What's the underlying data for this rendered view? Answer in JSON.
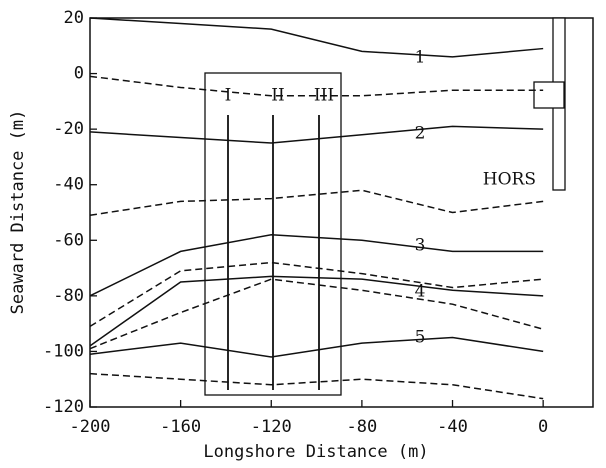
{
  "chart_data": {
    "type": "line",
    "xlabel": "Longshore Distance (m)",
    "ylabel": "Seaward Distance (m)",
    "x": [
      -200,
      -160,
      -120,
      -80,
      -40,
      0
    ],
    "series": [
      {
        "color": "#111111",
        "dashed": false,
        "values": [
          20,
          18,
          16,
          8,
          6,
          9
        ]
      },
      {
        "color": "#111111",
        "dashed": true,
        "values": [
          -1,
          -5,
          -8,
          -8,
          -6,
          -6
        ]
      },
      {
        "color": "#111111",
        "dashed": false,
        "values": [
          -21,
          -23,
          -25,
          -22,
          -19,
          -20
        ]
      },
      {
        "color": "#111111",
        "dashed": true,
        "values": [
          -51,
          -46,
          -45,
          -42,
          -50,
          -46
        ]
      },
      {
        "color": "#111111",
        "dashed": false,
        "values": [
          -80,
          -64,
          -58,
          -60,
          -64,
          -64
        ]
      },
      {
        "color": "#111111",
        "dashed": true,
        "values": [
          -91,
          -71,
          -68,
          -72,
          -77,
          -74
        ]
      },
      {
        "color": "#111111",
        "dashed": false,
        "values": [
          -98,
          -75,
          -73,
          -74,
          -78,
          -80
        ]
      },
      {
        "color": "#111111",
        "dashed": true,
        "values": [
          -99,
          -86,
          -74,
          -78,
          -83,
          -92
        ]
      },
      {
        "color": "#111111",
        "dashed": false,
        "values": [
          -101,
          -97,
          -102,
          -97,
          -95,
          -100
        ]
      },
      {
        "color": "#111111",
        "dashed": true,
        "values": [
          -108,
          -110,
          -112,
          -110,
          -112,
          -117
        ]
      }
    ],
    "annotations": [
      "1",
      "2",
      "3",
      "4",
      "5",
      "I",
      "II",
      "III",
      "HORS"
    ],
    "xlim": [
      -200,
      22
    ],
    "ylim": [
      -120,
      20
    ],
    "xticks": [
      -200,
      -160,
      -120,
      -80,
      -40,
      0
    ],
    "yticks": [
      20,
      0,
      -20,
      -40,
      -60,
      -80,
      -100,
      -120
    ]
  }
}
